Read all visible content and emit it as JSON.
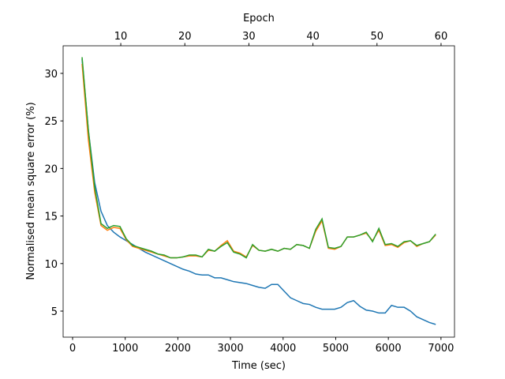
{
  "chart_data": {
    "type": "line",
    "xlabel": "Time (sec)",
    "ylabel": "Normalised mean square error (%)",
    "x2label": "Epoch",
    "x": [
      180,
      300,
      420,
      540,
      660,
      780,
      900,
      1020,
      1140,
      1260,
      1380,
      1500,
      1620,
      1740,
      1860,
      1980,
      2100,
      2220,
      2340,
      2460,
      2580,
      2700,
      2820,
      2940,
      3060,
      3180,
      3300,
      3420,
      3540,
      3660,
      3780,
      3900,
      4020,
      4140,
      4260,
      4380,
      4500,
      4620,
      4740,
      4860,
      4980,
      5100,
      5220,
      5340,
      5460,
      5580,
      5700,
      5820,
      5940,
      6060,
      6180,
      6300,
      6420,
      6540,
      6660,
      6780,
      6900
    ],
    "series": [
      {
        "color": "#1f77b4",
        "values": [
          31.5,
          24,
          18.5,
          15.5,
          14,
          13.3,
          12.8,
          12.4,
          12.0,
          11.6,
          11.2,
          10.9,
          10.6,
          10.3,
          10.0,
          9.7,
          9.4,
          9.2,
          8.9,
          8.8,
          8.8,
          8.5,
          8.5,
          8.3,
          8.1,
          8.0,
          7.9,
          7.7,
          7.5,
          7.4,
          7.8,
          7.8,
          7.1,
          6.4,
          6.1,
          5.8,
          5.7,
          5.4,
          5.2,
          5.2,
          5.2,
          5.4,
          5.9,
          6.1,
          5.5,
          5.1,
          5.0,
          4.8,
          4.8,
          5.6,
          5.4,
          5.4,
          5.0,
          4.4,
          4.1,
          3.8,
          3.6
        ]
      },
      {
        "color": "#ff7f0e",
        "values": [
          31,
          23,
          17.5,
          14,
          13.5,
          13.8,
          13.7,
          12.5,
          11.8,
          11.6,
          11.4,
          11.2,
          11.0,
          10.8,
          10.6,
          10.6,
          10.7,
          10.8,
          10.8,
          10.7,
          11.4,
          11.3,
          11.9,
          12.4,
          11.3,
          11.1,
          10.7,
          11.9,
          11.4,
          11.3,
          11.5,
          11.3,
          11.6,
          11.5,
          12.0,
          11.9,
          11.6,
          13.4,
          14.5,
          11.6,
          11.5,
          11.8,
          12.8,
          12.8,
          13.0,
          13.2,
          12.4,
          13.5,
          11.9,
          12.0,
          11.7,
          12.2,
          12.4,
          11.8,
          12.1,
          12.3,
          13.0
        ]
      },
      {
        "color": "#2ca02c",
        "values": [
          31.7,
          24,
          18,
          14.2,
          13.7,
          14.0,
          13.9,
          12.6,
          11.9,
          11.7,
          11.5,
          11.3,
          11.0,
          10.9,
          10.6,
          10.6,
          10.7,
          10.9,
          10.9,
          10.7,
          11.5,
          11.3,
          11.8,
          12.2,
          11.2,
          11.0,
          10.6,
          12.0,
          11.4,
          11.3,
          11.5,
          11.3,
          11.6,
          11.5,
          12.0,
          11.9,
          11.6,
          13.6,
          14.7,
          11.7,
          11.6,
          11.8,
          12.8,
          12.8,
          13.0,
          13.3,
          12.3,
          13.7,
          12.0,
          12.1,
          11.8,
          12.3,
          12.4,
          11.9,
          12.1,
          12.3,
          13.1
        ]
      }
    ],
    "xlim": [
      -180,
      7257
    ],
    "xticks": [
      0,
      1000,
      2000,
      3000,
      4000,
      5000,
      6000,
      7000
    ],
    "x2lim": [
      1.0,
      62.1
    ],
    "x2ticks": [
      10,
      20,
      30,
      40,
      50,
      60
    ],
    "ylim": [
      2.26,
      32.9
    ],
    "yticks": [
      5,
      10,
      15,
      20,
      25,
      30
    ],
    "grid": false
  }
}
